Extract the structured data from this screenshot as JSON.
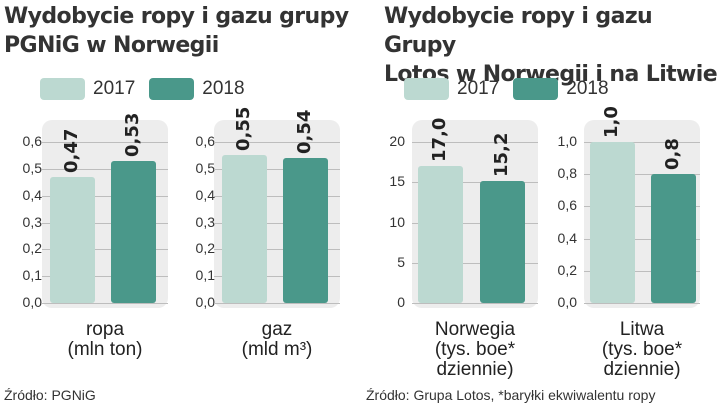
{
  "colors": {
    "y2017": "#bcd9d1",
    "y2018": "#4a988a",
    "panel": "#ededed"
  },
  "left": {
    "title_line1": "Wydobycie ropy i gazu grupy",
    "title_line2": "PGNiG w Norwegii",
    "legend": [
      "2017",
      "2018"
    ],
    "source": "Źródło: PGNiG"
  },
  "right": {
    "title_line1": "Wydobycie ropy i gazu Grupy",
    "title_line2": "Lotos w Norwegii i na Litwie",
    "legend": [
      "2017",
      "2018"
    ],
    "source": "Źródło: Grupa Lotos, *baryłki ekwiwalentu ropy"
  },
  "chart_data": [
    {
      "type": "bar",
      "category_lines": [
        "ropa",
        "(mln ton)"
      ],
      "series": [
        {
          "name": "2017",
          "values": [
            0.47
          ]
        },
        {
          "name": "2018",
          "values": [
            0.53
          ]
        }
      ],
      "value_labels": [
        "0,47",
        "0,53"
      ],
      "yticks": [
        "0,0",
        "0,1",
        "0,2",
        "0,3",
        "0,4",
        "0,5",
        "0,6"
      ],
      "ylim": [
        0,
        0.6
      ]
    },
    {
      "type": "bar",
      "category_lines": [
        "gaz",
        "(mld m³)"
      ],
      "series": [
        {
          "name": "2017",
          "values": [
            0.55
          ]
        },
        {
          "name": "2018",
          "values": [
            0.54
          ]
        }
      ],
      "value_labels": [
        "0,55",
        "0,54"
      ],
      "yticks": [
        "0,0",
        "0,1",
        "0,2",
        "0,3",
        "0,4",
        "0,5",
        "0,6"
      ],
      "ylim": [
        0,
        0.6
      ]
    },
    {
      "type": "bar",
      "category_lines": [
        "Norwegia",
        "(tys. boe*",
        "dziennie)"
      ],
      "series": [
        {
          "name": "2017",
          "values": [
            17.0
          ]
        },
        {
          "name": "2018",
          "values": [
            15.2
          ]
        }
      ],
      "value_labels": [
        "17,0",
        "15,2"
      ],
      "yticks": [
        "0",
        "5",
        "10",
        "15",
        "20"
      ],
      "ylim": [
        0,
        20
      ]
    },
    {
      "type": "bar",
      "category_lines": [
        "Litwa",
        "(tys. boe*",
        "dziennie)"
      ],
      "series": [
        {
          "name": "2017",
          "values": [
            1.0
          ]
        },
        {
          "name": "2018",
          "values": [
            0.8
          ]
        }
      ],
      "value_labels": [
        "1,0",
        "0,8"
      ],
      "yticks": [
        "0,0",
        "0,2",
        "0,4",
        "0,6",
        "0,8",
        "1,0"
      ],
      "ylim": [
        0,
        1.0
      ]
    }
  ]
}
